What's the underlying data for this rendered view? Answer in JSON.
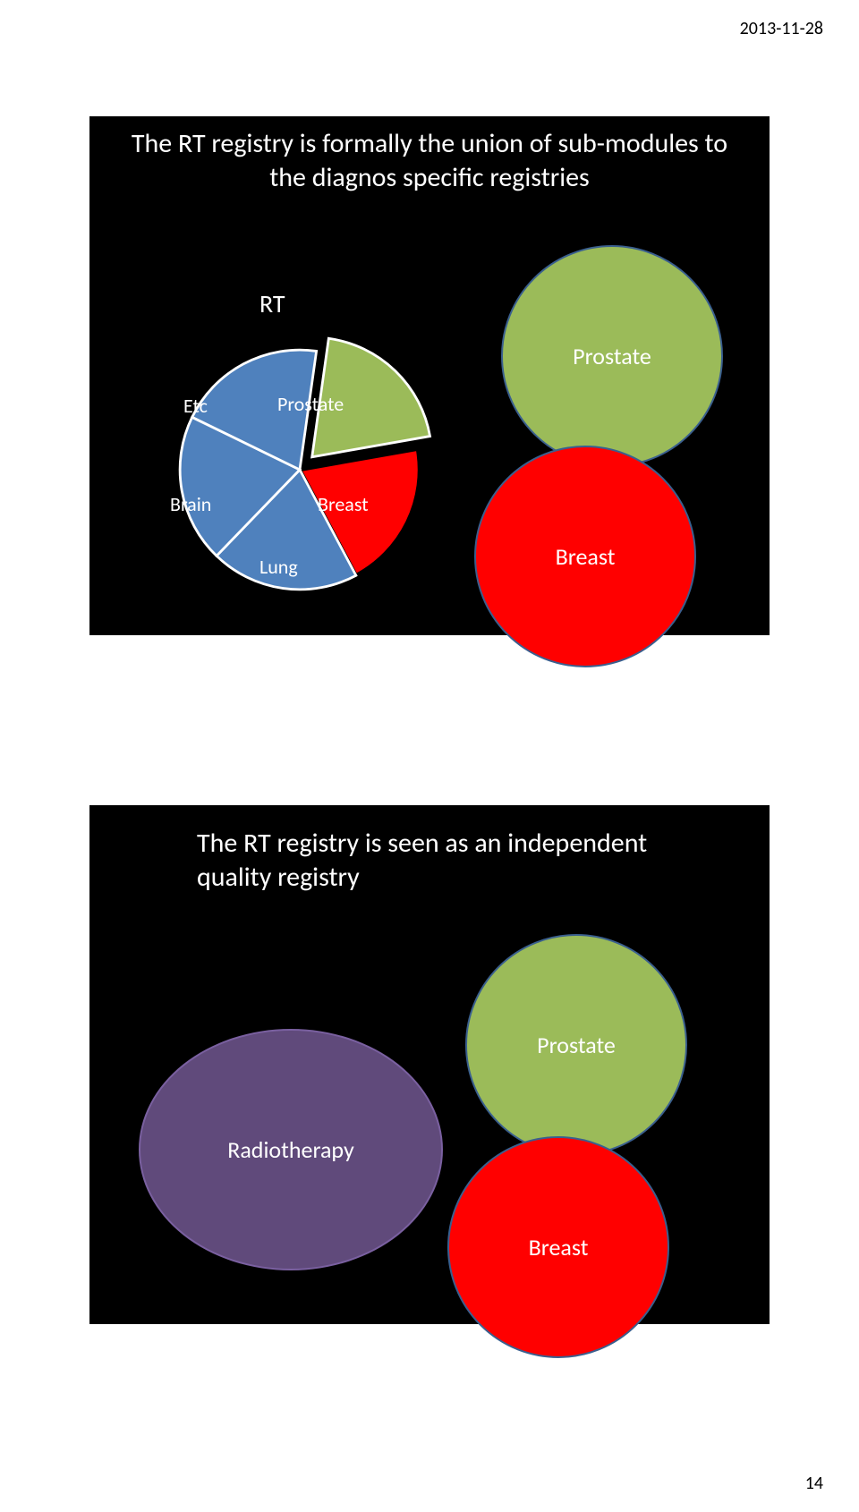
{
  "page": {
    "date": "2013-11-28",
    "number": "14",
    "background_color": "#ffffff",
    "slide_background_color": "#000000",
    "text_color": "#ffffff"
  },
  "slide1": {
    "title": "The RT registry is formally the union of sub-modules to the diagnos specific registries",
    "rt_label": "RT",
    "pie": {
      "type": "pie",
      "slices": [
        {
          "label": "Prostate",
          "value": 20,
          "color": "#9bbb59",
          "pulled": true
        },
        {
          "label": "Breast",
          "value": 20,
          "color": "#ff0000",
          "highlighted": true
        },
        {
          "label": "Lung",
          "value": 20,
          "color": "#4f81bd",
          "pulled": false
        },
        {
          "label": "Brain",
          "value": 20,
          "color": "#4f81bd",
          "pulled": false
        },
        {
          "label": "Etc",
          "value": 20,
          "color": "#4f81bd",
          "pulled": false
        }
      ],
      "slice_border_color": "#ffffff",
      "highlight_border_color": "#000000",
      "slice_border_width": 2,
      "label_color": "#ffffff",
      "label_fontsize": 22
    },
    "circles": {
      "prostate": {
        "label": "Prostate",
        "fill": "#9bbb59",
        "border": "#3a5f8e",
        "label_fontsize": 26
      },
      "breast": {
        "label": "Breast",
        "fill": "#ff0000",
        "border": "#3a5f8e",
        "label_fontsize": 26
      }
    }
  },
  "slide2": {
    "title": "The RT registry is seen as an independent quality registry",
    "circles": {
      "prostate": {
        "label": "Prostate",
        "fill": "#9bbb59",
        "border": "#3a5f8e",
        "label_fontsize": 26
      },
      "breast": {
        "label": "Breast",
        "fill": "#ff0000",
        "border": "#3a5f8e",
        "label_fontsize": 26
      },
      "radiotherapy": {
        "label": "Radiotherapy",
        "fill": "#604a7b",
        "border": "#7a60a0",
        "label_fontsize": 26
      }
    }
  }
}
